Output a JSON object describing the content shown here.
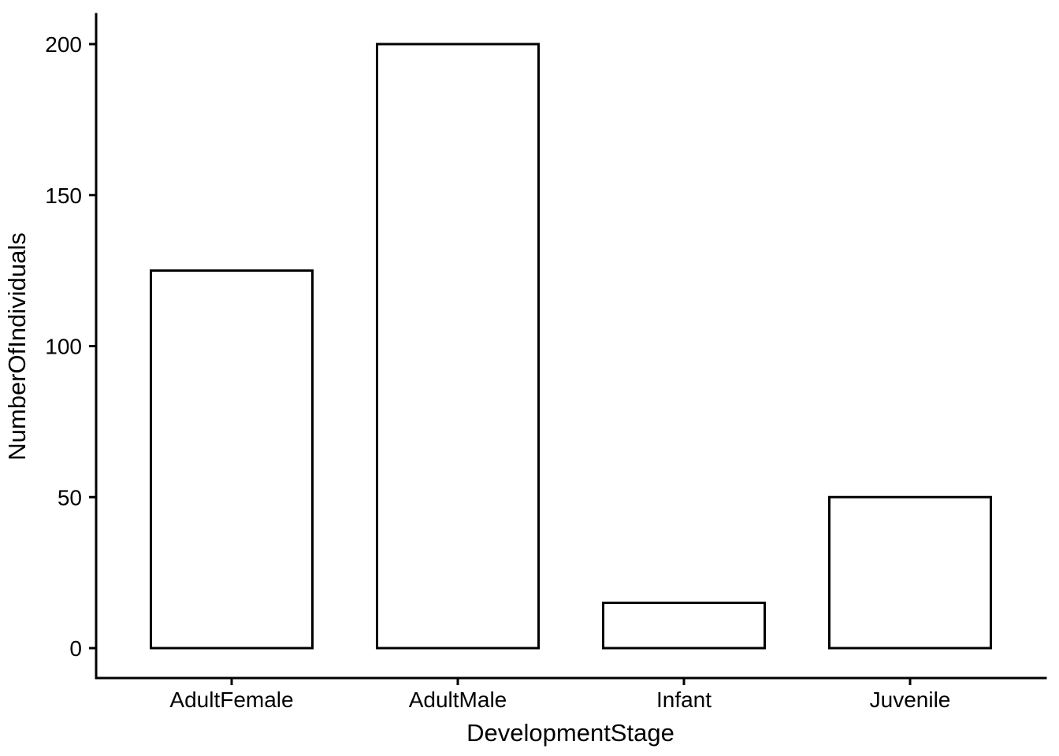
{
  "chart_data": {
    "type": "bar",
    "categories": [
      "AdultFemale",
      "AdultMale",
      "Infant",
      "Juvenile"
    ],
    "values": [
      125,
      200,
      15,
      50
    ],
    "title": "",
    "xlabel": "DevelopmentStage",
    "ylabel": "NumberOfIndividuals",
    "ylim": [
      0,
      200
    ],
    "yticks": [
      0,
      50,
      100,
      150,
      200
    ],
    "legend_position": "none",
    "grid": false,
    "bar_fill": "#ffffff",
    "bar_stroke": "#000000",
    "axis_color": "#000000",
    "text_color": "#000000",
    "background": "#ffffff"
  }
}
